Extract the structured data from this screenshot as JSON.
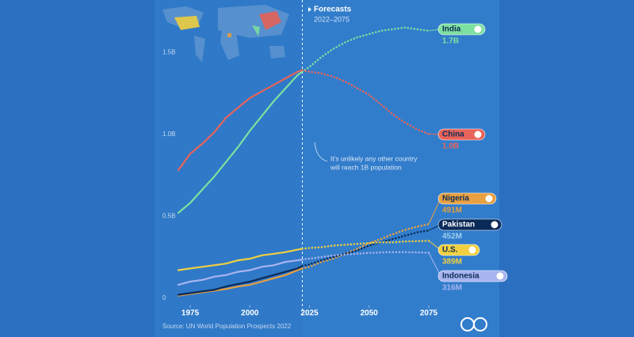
{
  "chart_data": {
    "type": "line",
    "x": [
      1970,
      1975,
      1980,
      1985,
      1990,
      1995,
      2000,
      2005,
      2010,
      2015,
      2020,
      2022,
      2025,
      2030,
      2035,
      2040,
      2045,
      2050,
      2055,
      2060,
      2065,
      2070,
      2075
    ],
    "xlim": [
      1970,
      2075
    ],
    "xticks": [
      1975,
      2000,
      2025,
      2050,
      2075
    ],
    "ylim": [
      0,
      1.8
    ],
    "yticks": [
      0,
      {
        "value": 0.5,
        "label": "0.5B"
      },
      {
        "value": 1.0,
        "label": "1.0B"
      },
      {
        "value": 1.5,
        "label": "1.5B"
      }
    ],
    "forecast_start": 2022,
    "forecast_title": "Forecasts",
    "forecast_range": "2022–2075",
    "annotation": [
      "It's unlikely any other country",
      "will reach 1B population"
    ],
    "source": "Source: UN World Population Prospects 2022",
    "series": [
      {
        "name": "India",
        "color": "#7ee0a0",
        "end_label": "1.7B",
        "values": [
          0.56,
          0.62,
          0.7,
          0.78,
          0.87,
          0.96,
          1.06,
          1.15,
          1.24,
          1.32,
          1.4,
          1.42,
          1.45,
          1.51,
          1.56,
          1.6,
          1.63,
          1.65,
          1.67,
          1.68,
          1.69,
          1.68,
          1.67
        ]
      },
      {
        "name": "China",
        "color": "#e8645a",
        "end_label": "1.0B",
        "values": [
          0.82,
          0.92,
          0.98,
          1.05,
          1.14,
          1.2,
          1.26,
          1.3,
          1.34,
          1.38,
          1.42,
          1.43,
          1.42,
          1.41,
          1.39,
          1.36,
          1.32,
          1.28,
          1.22,
          1.16,
          1.11,
          1.07,
          1.04
        ]
      },
      {
        "name": "Nigeria",
        "color": "#e8a040",
        "end_label": "491M",
        "values": [
          0.055,
          0.065,
          0.075,
          0.085,
          0.095,
          0.11,
          0.12,
          0.14,
          0.16,
          0.18,
          0.21,
          0.22,
          0.23,
          0.26,
          0.28,
          0.31,
          0.34,
          0.375,
          0.4,
          0.43,
          0.455,
          0.475,
          0.491
        ]
      },
      {
        "name": "Pakistan",
        "color": "#0a2a5a",
        "end_label": "452M",
        "values": [
          0.06,
          0.07,
          0.08,
          0.09,
          0.11,
          0.125,
          0.14,
          0.16,
          0.18,
          0.2,
          0.22,
          0.235,
          0.245,
          0.27,
          0.29,
          0.31,
          0.33,
          0.36,
          0.38,
          0.4,
          0.42,
          0.44,
          0.452
        ]
      },
      {
        "name": "U.S.",
        "color": "#f0d040",
        "end_label": "389M",
        "values": [
          0.21,
          0.22,
          0.23,
          0.24,
          0.25,
          0.27,
          0.28,
          0.3,
          0.31,
          0.32,
          0.335,
          0.34,
          0.345,
          0.35,
          0.36,
          0.365,
          0.37,
          0.375,
          0.38,
          0.38,
          0.385,
          0.387,
          0.389
        ]
      },
      {
        "name": "Indonesia",
        "color": "#a8b4f0",
        "end_label": "316M",
        "values": [
          0.12,
          0.14,
          0.15,
          0.17,
          0.18,
          0.2,
          0.21,
          0.23,
          0.24,
          0.26,
          0.27,
          0.275,
          0.28,
          0.29,
          0.3,
          0.305,
          0.31,
          0.315,
          0.318,
          0.32,
          0.32,
          0.318,
          0.316
        ]
      }
    ]
  }
}
